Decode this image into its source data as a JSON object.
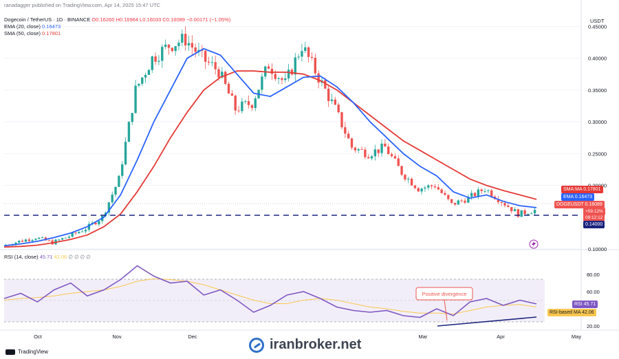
{
  "header": {
    "published": "ranadagger published on TradingView.com, Apr 14, 2025 15:47 UTC",
    "symbol": "Dogecoin / TetherUS · 1D · BINANCE",
    "ohlc": "O0.16260 H0.16964 L0.16033 C0.16089 −0.00171 (−1.05%)",
    "ema_label": "EMA (20, close)",
    "ema_value": "0.16473",
    "sma_label": "SMA (50, close)",
    "sma_value": "0.17801",
    "rsi_label": "RSI (14, close)",
    "rsi_value": "45.71",
    "rsi_ma_value": "42.06",
    "rsi_extra": "∅ ∅ ∅ ∅"
  },
  "axis": {
    "currency": "USDT",
    "price_ticks": [
      "0.45000",
      "0.40000",
      "0.35000",
      "0.30000",
      "0.25000",
      "0.20000",
      "0.10000"
    ],
    "rsi_ticks": [
      "80.00",
      "60.00",
      "20.00"
    ],
    "x_ticks": [
      "Oct",
      "Nov",
      "Dec",
      "Mar",
      "Apr",
      "May"
    ]
  },
  "tags": {
    "sma": "SMA:MA",
    "sma_val": "0.17801",
    "ema": "EMA",
    "ema_val": "0.16473",
    "symbol": "DOGEUSDT",
    "last_val": "0.16089",
    "countdown1": "+59.12%",
    "countdown2": "08:12:12",
    "support": "0.14000",
    "rsi": "RSI",
    "rsi_val": "45.71",
    "rsi_ma": "RSI-based MA",
    "rsi_ma_val": "42.06"
  },
  "annotation": "Positive divergence",
  "footer": {
    "brand": "TradingView",
    "watermark": "iranbroker.net"
  },
  "colors": {
    "up": "#26a69a",
    "down": "#ef5350",
    "ema": "#2962ff",
    "sma": "#e53935",
    "rsi": "#7e57c2",
    "support": "#1a237e"
  },
  "chart_data": [
    {
      "type": "candlestick",
      "title": "Dogecoin / TetherUS · 1D · BINANCE",
      "x_ticks": [
        "Oct",
        "Nov",
        "Dec",
        "Mar",
        "Apr",
        "May"
      ],
      "ylim": [
        0.1,
        0.47
      ],
      "support_level": 0.14,
      "last_close": 0.16089,
      "series": [
        {
          "name": "EMA (20, close)",
          "values": [
            0.105,
            0.108,
            0.112,
            0.118,
            0.125,
            0.135,
            0.15,
            0.185,
            0.24,
            0.3,
            0.35,
            0.4,
            0.415,
            0.405,
            0.375,
            0.345,
            0.34,
            0.355,
            0.37,
            0.372,
            0.355,
            0.33,
            0.3,
            0.275,
            0.25,
            0.23,
            0.215,
            0.19,
            0.18,
            0.185,
            0.175,
            0.168,
            0.165
          ]
        },
        {
          "name": "SMA (50, close)",
          "values": [
            0.103,
            0.104,
            0.106,
            0.11,
            0.115,
            0.122,
            0.135,
            0.155,
            0.19,
            0.23,
            0.275,
            0.315,
            0.35,
            0.37,
            0.38,
            0.38,
            0.378,
            0.378,
            0.375,
            0.365,
            0.35,
            0.33,
            0.31,
            0.29,
            0.27,
            0.255,
            0.24,
            0.225,
            0.21,
            0.2,
            0.192,
            0.185,
            0.178
          ]
        },
        {
          "name": "Close",
          "values": [
            0.105,
            0.112,
            0.118,
            0.11,
            0.12,
            0.132,
            0.15,
            0.21,
            0.35,
            0.4,
            0.42,
            0.43,
            0.4,
            0.38,
            0.32,
            0.33,
            0.39,
            0.36,
            0.42,
            0.37,
            0.32,
            0.26,
            0.25,
            0.26,
            0.22,
            0.195,
            0.2,
            0.17,
            0.18,
            0.195,
            0.175,
            0.155,
            0.161
          ]
        }
      ]
    },
    {
      "type": "line",
      "title": "RSI (14, close)",
      "ylim": [
        20,
        100
      ],
      "y_ticks": [
        80,
        60,
        20
      ],
      "series": [
        {
          "name": "RSI",
          "values": [
            52,
            58,
            48,
            62,
            70,
            55,
            62,
            74,
            90,
            78,
            70,
            72,
            56,
            62,
            50,
            36,
            44,
            56,
            60,
            52,
            42,
            38,
            36,
            38,
            32,
            30,
            40,
            32,
            48,
            52,
            44,
            50,
            45.71
          ]
        },
        {
          "name": "RSI-based MA",
          "values": [
            50,
            52,
            53,
            55,
            58,
            60,
            62,
            66,
            72,
            75,
            74,
            72,
            68,
            62,
            56,
            50,
            46,
            46,
            50,
            52,
            50,
            46,
            42,
            40,
            37,
            35,
            35,
            34,
            38,
            42,
            44,
            45,
            42.06
          ]
        }
      ]
    }
  ]
}
